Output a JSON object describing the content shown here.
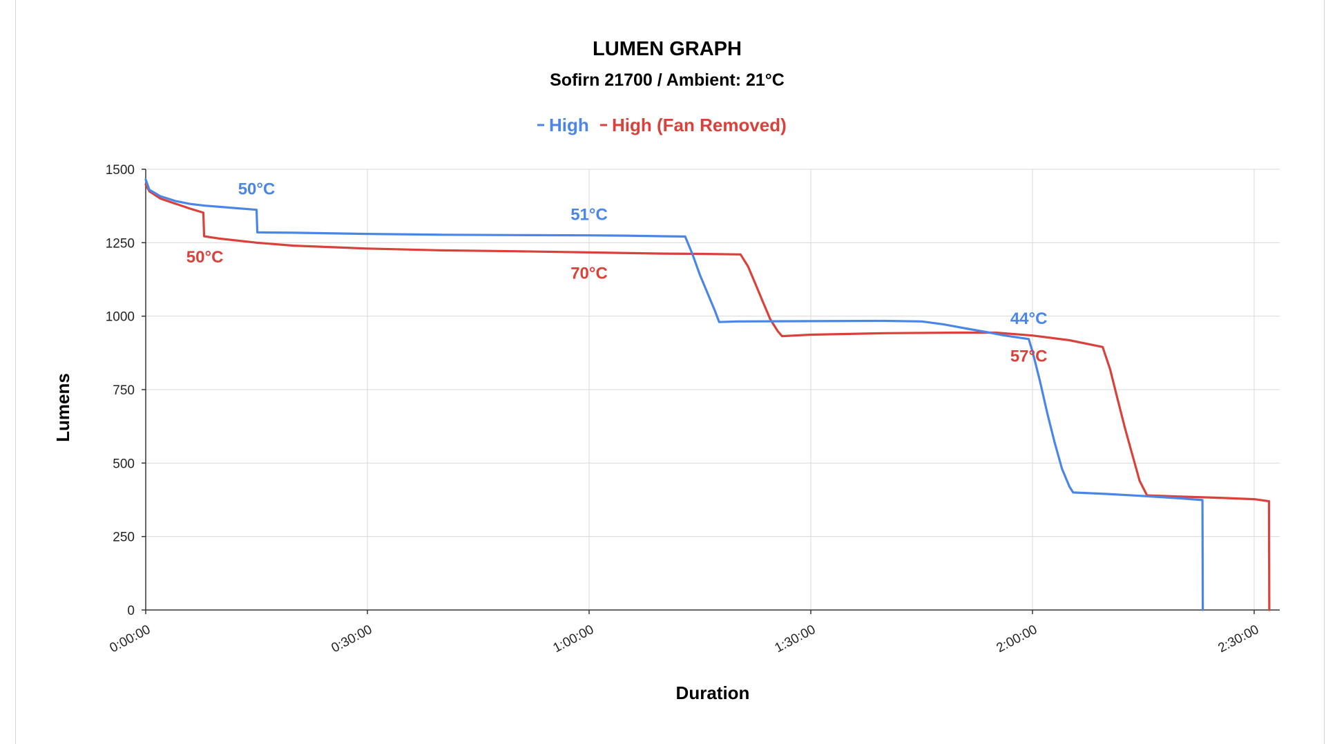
{
  "chart_data": {
    "type": "line",
    "title": "LUMEN GRAPH",
    "subtitle": "Sofirn 21700 / Ambient: 21°C",
    "xlabel": "Duration",
    "ylabel": "Lumens",
    "xlim_minutes": [
      0,
      154
    ],
    "ylim": [
      0,
      1500
    ],
    "x_ticks": [
      "0:00:00",
      "0:30:00",
      "1:00:00",
      "1:30:00",
      "2:00:00",
      "2:30:00"
    ],
    "y_ticks": [
      "0",
      "250",
      "500",
      "750",
      "1000",
      "1250",
      "1500"
    ],
    "grid": true,
    "legend_position": "top-center",
    "series": [
      {
        "name": "High",
        "color": "#4a86e8",
        "points": [
          [
            0,
            1465
          ],
          [
            0.5,
            1430
          ],
          [
            2,
            1408
          ],
          [
            4,
            1392
          ],
          [
            6,
            1382
          ],
          [
            8,
            1376
          ],
          [
            10,
            1372
          ],
          [
            12,
            1368
          ],
          [
            14,
            1364
          ],
          [
            15,
            1362
          ],
          [
            15.1,
            1285
          ],
          [
            20,
            1284
          ],
          [
            30,
            1280
          ],
          [
            40,
            1277
          ],
          [
            50,
            1276
          ],
          [
            60,
            1275
          ],
          [
            65,
            1274
          ],
          [
            70,
            1272
          ],
          [
            73,
            1271
          ],
          [
            74,
            1210
          ],
          [
            75,
            1140
          ],
          [
            76,
            1080
          ],
          [
            77,
            1020
          ],
          [
            77.6,
            980
          ],
          [
            80,
            982
          ],
          [
            90,
            983
          ],
          [
            100,
            984
          ],
          [
            105,
            982
          ],
          [
            108,
            972
          ],
          [
            111,
            958
          ],
          [
            114,
            945
          ],
          [
            116,
            935
          ],
          [
            119.5,
            922
          ],
          [
            120,
            880
          ],
          [
            121,
            780
          ],
          [
            122,
            670
          ],
          [
            123,
            570
          ],
          [
            124,
            480
          ],
          [
            125,
            420
          ],
          [
            125.5,
            400
          ],
          [
            130,
            395
          ],
          [
            135,
            388
          ],
          [
            140,
            380
          ],
          [
            143,
            374
          ],
          [
            143.05,
            0
          ]
        ]
      },
      {
        "name": "High (Fan Removed)",
        "color": "#d9413a",
        "points": [
          [
            0,
            1448
          ],
          [
            0.5,
            1425
          ],
          [
            2,
            1400
          ],
          [
            4,
            1383
          ],
          [
            6,
            1366
          ],
          [
            7.8,
            1352
          ],
          [
            7.9,
            1272
          ],
          [
            10,
            1264
          ],
          [
            15,
            1250
          ],
          [
            20,
            1240
          ],
          [
            30,
            1230
          ],
          [
            40,
            1224
          ],
          [
            50,
            1221
          ],
          [
            60,
            1217
          ],
          [
            70,
            1213
          ],
          [
            75,
            1212
          ],
          [
            80.5,
            1210
          ],
          [
            81.5,
            1170
          ],
          [
            82.5,
            1110
          ],
          [
            83.5,
            1050
          ],
          [
            84.5,
            990
          ],
          [
            85.5,
            950
          ],
          [
            86.1,
            932
          ],
          [
            90,
            937
          ],
          [
            100,
            942
          ],
          [
            110,
            944
          ],
          [
            115,
            944
          ],
          [
            120,
            934
          ],
          [
            125,
            918
          ],
          [
            129.5,
            895
          ],
          [
            130.5,
            820
          ],
          [
            131.5,
            720
          ],
          [
            132.5,
            620
          ],
          [
            133.5,
            530
          ],
          [
            134.5,
            440
          ],
          [
            135.5,
            390
          ],
          [
            140,
            386
          ],
          [
            145,
            382
          ],
          [
            150,
            377
          ],
          [
            152,
            370
          ],
          [
            152.05,
            0
          ]
        ]
      }
    ],
    "annotations": [
      {
        "text": "50°C",
        "series": "High",
        "x_min": 15,
        "y": 1362
      },
      {
        "text": "51°C",
        "series": "High",
        "x_min": 60,
        "y": 1275
      },
      {
        "text": "44°C",
        "series": "High",
        "x_min": 119.5,
        "y": 922
      },
      {
        "text": "50°C",
        "series": "High (Fan Removed)",
        "x_min": 8,
        "y": 1272
      },
      {
        "text": "70°C",
        "series": "High (Fan Removed)",
        "x_min": 60,
        "y": 1217
      },
      {
        "text": "57°C",
        "series": "High (Fan Removed)",
        "x_min": 119.5,
        "y": 934
      }
    ]
  }
}
